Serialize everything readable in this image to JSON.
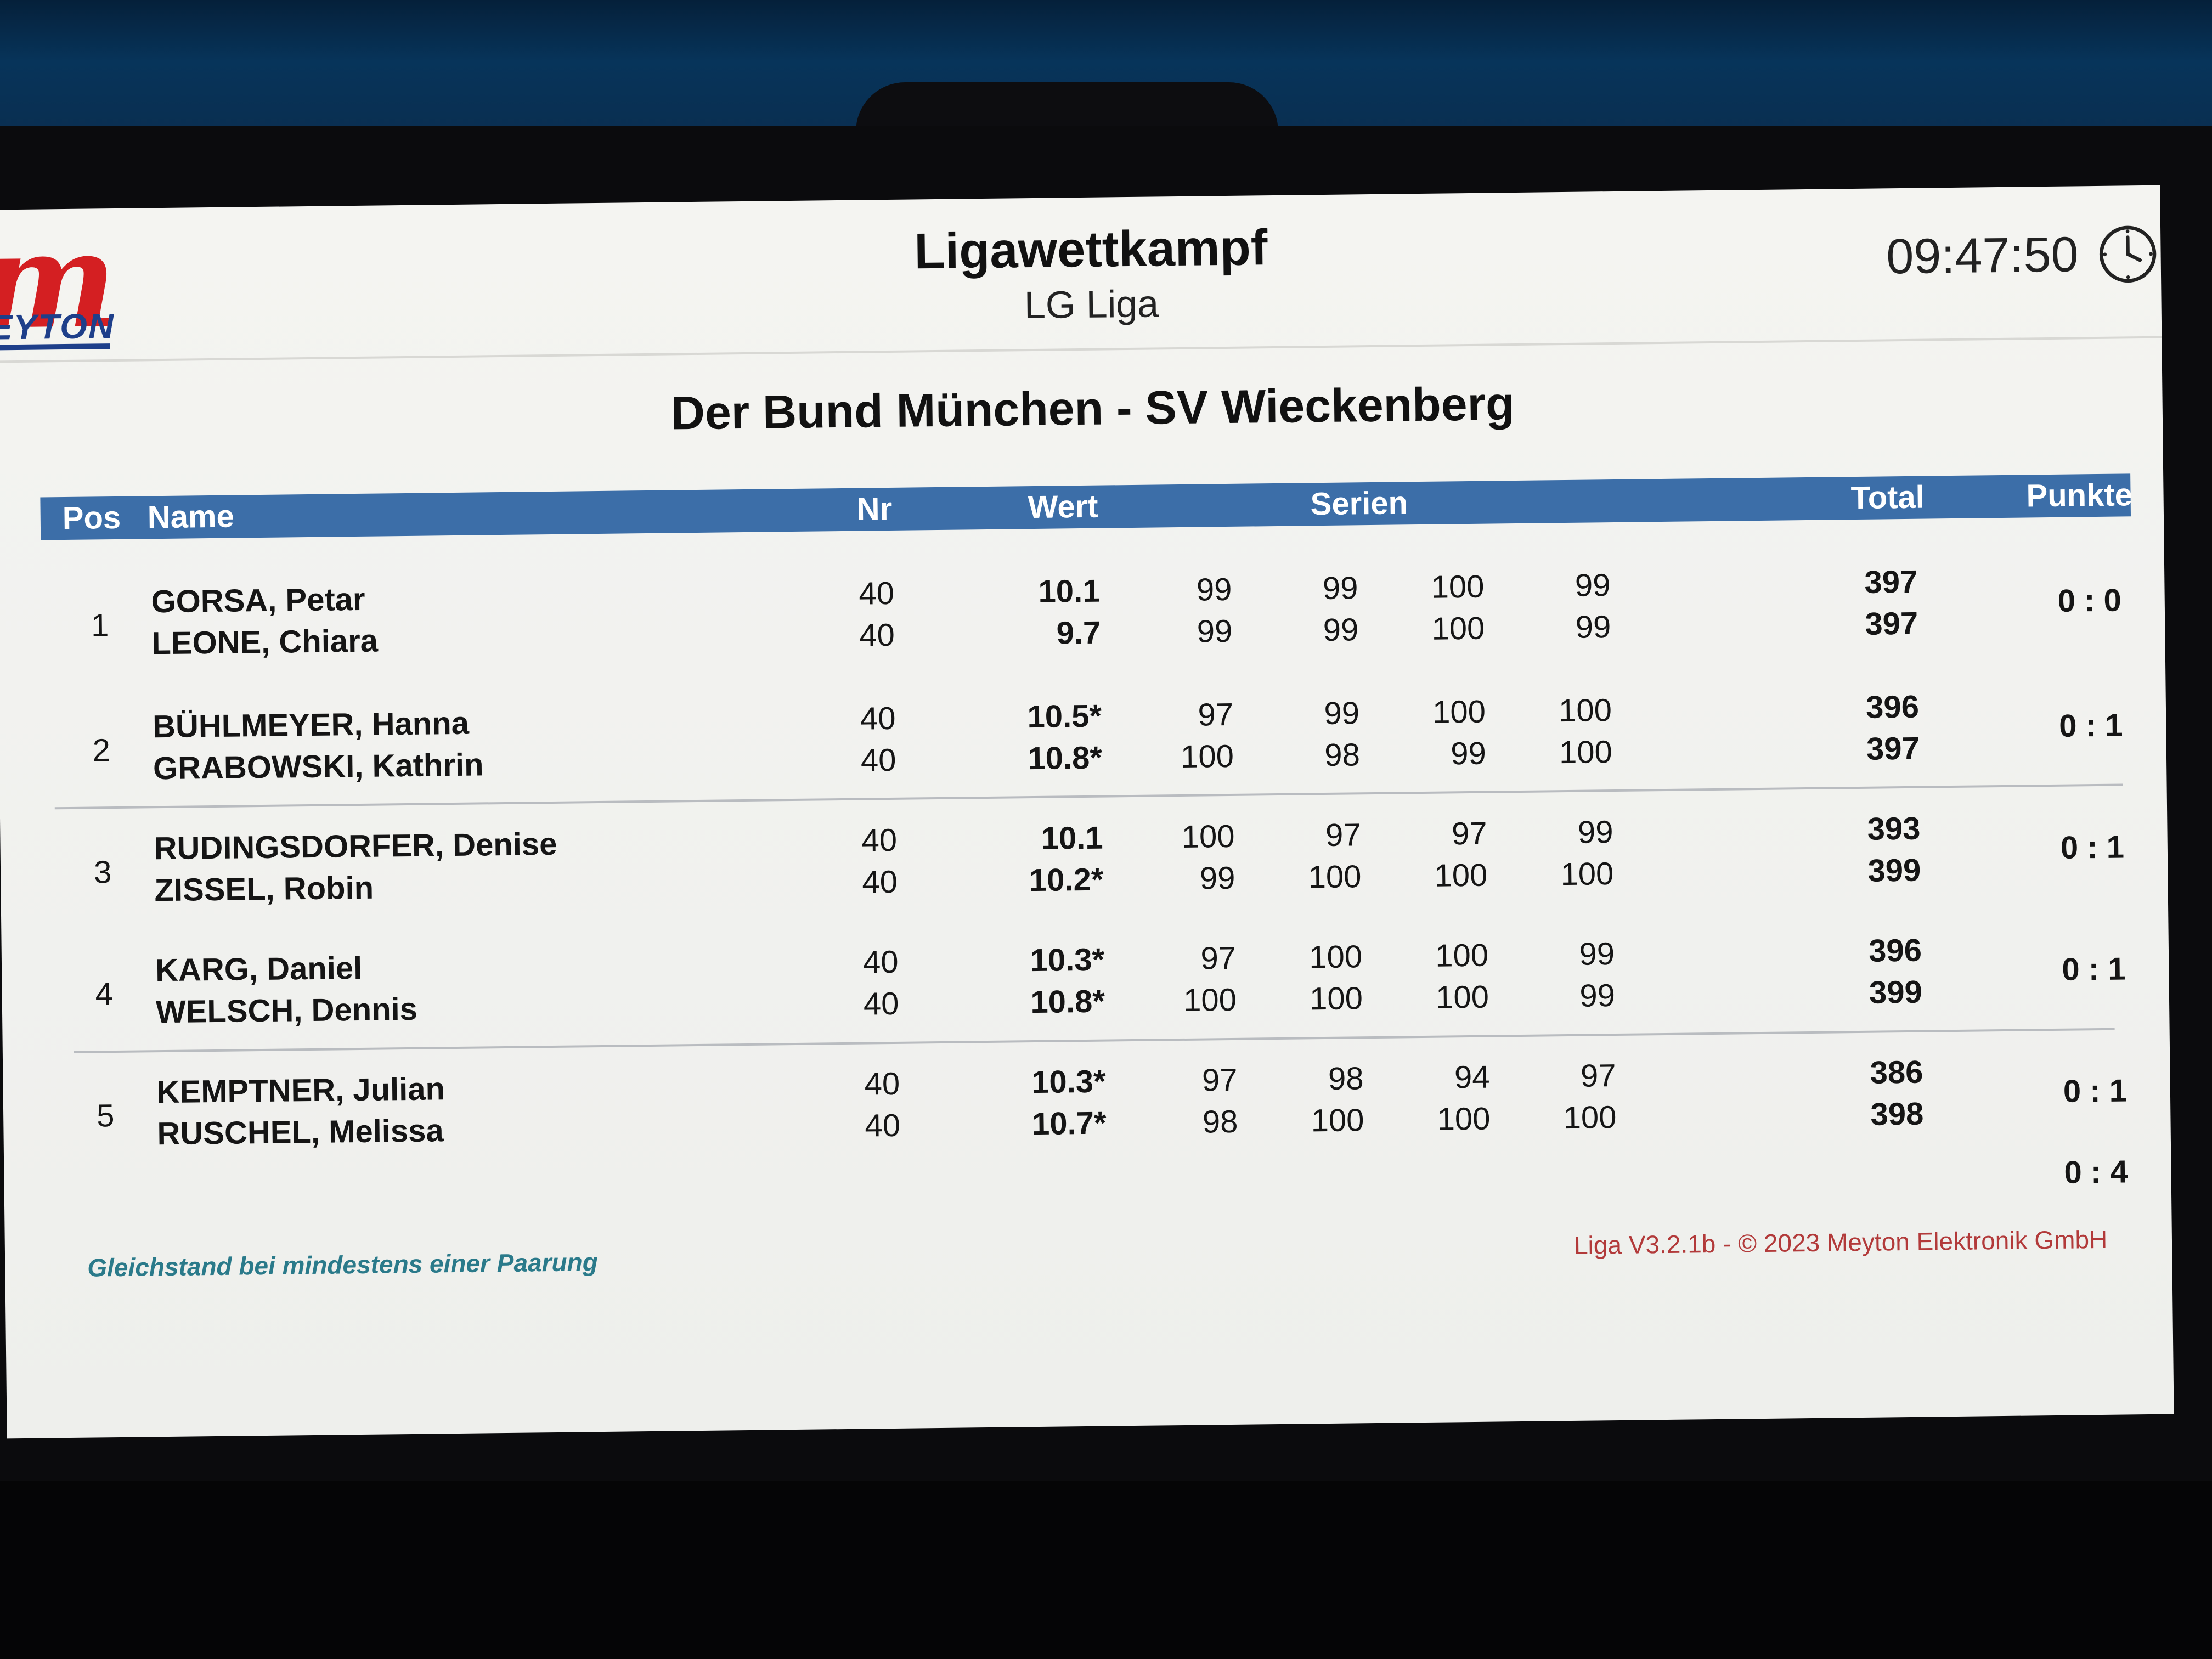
{
  "header": {
    "title": "Ligawettkampf",
    "subtitle": "LG Liga",
    "time": "09:47:50",
    "logo_text": "EYTON",
    "clock_icon": "clock-icon"
  },
  "match": {
    "title": "Der Bund München - SV Wieckenberg"
  },
  "table": {
    "columns": {
      "pos": "Pos",
      "name": "Name",
      "nr": "Nr",
      "wert": "Wert",
      "serien": "Serien",
      "total": "Total",
      "punkte": "Punkte"
    },
    "pairings": [
      {
        "pos": "1",
        "punkte": "0 : 0",
        "shooters": [
          {
            "name": "GORSA, Petar",
            "nr": "40",
            "wert": "10.1",
            "serien": [
              "99",
              "99",
              "100",
              "99"
            ],
            "total": "397"
          },
          {
            "name": "LEONE, Chiara",
            "nr": "40",
            "wert": "9.7",
            "serien": [
              "99",
              "99",
              "100",
              "99"
            ],
            "total": "397"
          }
        ]
      },
      {
        "pos": "2",
        "punkte": "0 : 1",
        "shooters": [
          {
            "name": "BÜHLMEYER, Hanna",
            "nr": "40",
            "wert": "10.5*",
            "serien": [
              "97",
              "99",
              "100",
              "100"
            ],
            "total": "396"
          },
          {
            "name": "GRABOWSKI, Kathrin",
            "nr": "40",
            "wert": "10.8*",
            "serien": [
              "100",
              "98",
              "99",
              "100"
            ],
            "total": "397"
          }
        ]
      },
      {
        "pos": "3",
        "punkte": "0 : 1",
        "shooters": [
          {
            "name": "RUDINGSDORFER, Denise",
            "nr": "40",
            "wert": "10.1",
            "serien": [
              "100",
              "97",
              "97",
              "99"
            ],
            "total": "393"
          },
          {
            "name": "ZISSEL, Robin",
            "nr": "40",
            "wert": "10.2*",
            "serien": [
              "99",
              "100",
              "100",
              "100"
            ],
            "total": "399"
          }
        ]
      },
      {
        "pos": "4",
        "punkte": "0 : 1",
        "shooters": [
          {
            "name": "KARG, Daniel",
            "nr": "40",
            "wert": "10.3*",
            "serien": [
              "97",
              "100",
              "100",
              "99"
            ],
            "total": "396"
          },
          {
            "name": "WELSCH, Dennis",
            "nr": "40",
            "wert": "10.8*",
            "serien": [
              "100",
              "100",
              "100",
              "99"
            ],
            "total": "399"
          }
        ]
      },
      {
        "pos": "5",
        "punkte": "0 : 1",
        "shooters": [
          {
            "name": "KEMPTNER, Julian",
            "nr": "40",
            "wert": "10.3*",
            "serien": [
              "97",
              "98",
              "94",
              "97"
            ],
            "total": "386"
          },
          {
            "name": "RUSCHEL, Melissa",
            "nr": "40",
            "wert": "10.7*",
            "serien": [
              "98",
              "100",
              "100",
              "100"
            ],
            "total": "398"
          }
        ]
      }
    ],
    "total_punkte": "0 : 4"
  },
  "footer": {
    "note": "Gleichstand bei mindestens einer Paarung",
    "copyright": "Liga V3.2.1b - © 2023 Meyton Elektronik GmbH"
  },
  "colors": {
    "header_bar": "#3c6ea8",
    "logo_red": "#d41f22",
    "logo_blue": "#1e3f8a",
    "note_teal": "#2a7a8a",
    "copyright_red": "#b23a3a"
  }
}
